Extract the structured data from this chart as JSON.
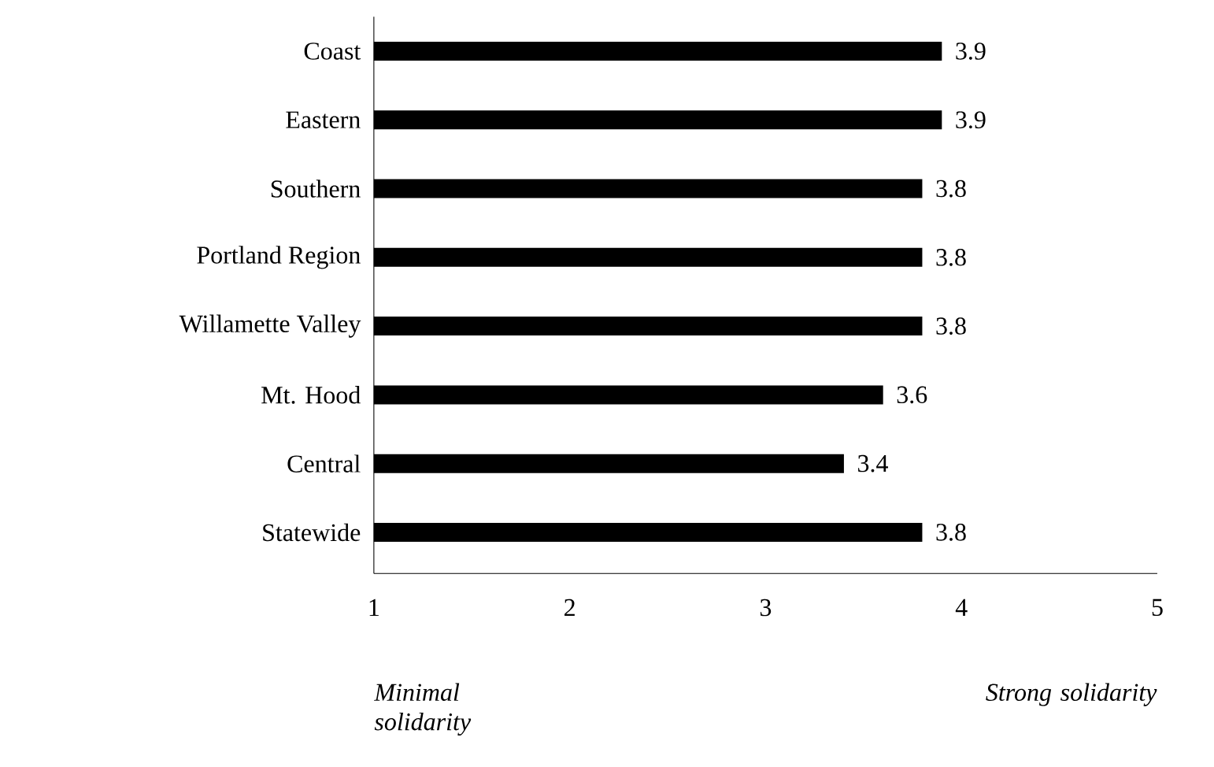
{
  "chart_data": {
    "type": "bar",
    "orientation": "horizontal",
    "categories": [
      "Coast",
      "Eastern",
      "Southern",
      "Portland Region",
      "Willamette Valley",
      "Mt. Hood",
      "Central",
      "Statewide"
    ],
    "values": [
      3.9,
      3.9,
      3.8,
      3.8,
      3.8,
      3.6,
      3.4,
      3.8
    ],
    "color": "#000000",
    "xlim": [
      1,
      5
    ],
    "xticks": [
      1,
      2,
      3,
      4,
      5
    ],
    "data_labels": true,
    "annotations": [
      "Minimal solidarity",
      "Strong solidarity"
    ]
  }
}
